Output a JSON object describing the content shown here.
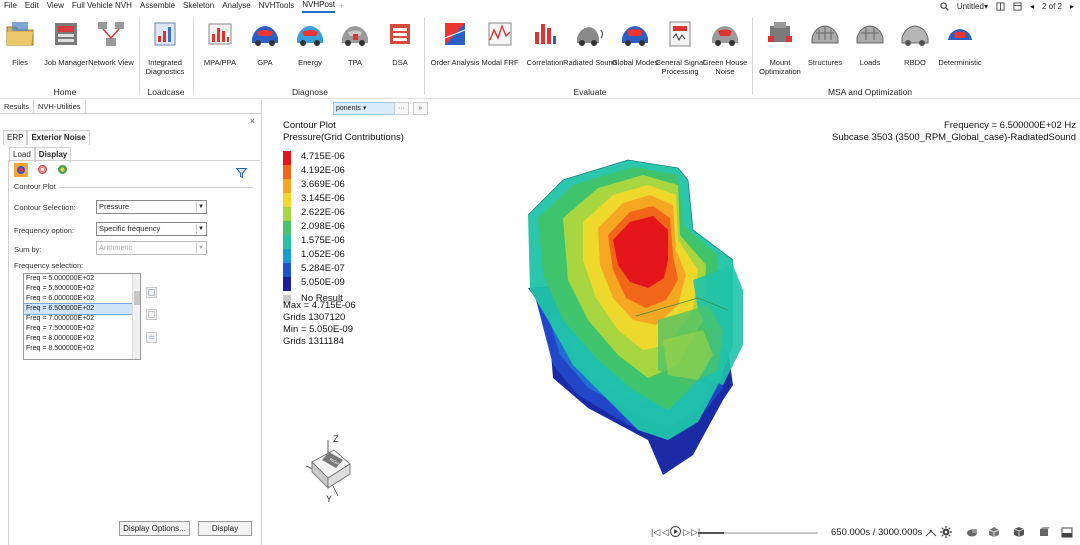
{
  "menubar": {
    "items": [
      "File",
      "Edit",
      "View",
      "Full Vehicle NVH",
      "Assemble",
      "Skeleton",
      "Analyse",
      "NVHTools",
      "NVHPost"
    ],
    "active_index": 8,
    "add_tab": "+"
  },
  "top_right": {
    "doc_title": "Untitled",
    "page_indicator": "2 of 2"
  },
  "ribbon": {
    "tools": [
      {
        "label": "Files",
        "icon": "folder-icon"
      },
      {
        "label": "Job Manager",
        "icon": "job-manager-icon"
      },
      {
        "label": "Network View",
        "icon": "network-view-icon"
      },
      {
        "label": "Integrated Diagnostics",
        "icon": "integrated-diagnostics-icon"
      },
      {
        "label": "MPA/PPA",
        "icon": "mpa-ppa-icon"
      },
      {
        "label": "GPA",
        "icon": "gpa-icon"
      },
      {
        "label": "Energy",
        "icon": "energy-icon"
      },
      {
        "label": "TPA",
        "icon": "tpa-icon"
      },
      {
        "label": "DSA",
        "icon": "dsa-icon"
      },
      {
        "label": "Order Analysis",
        "icon": "order-analysis-icon"
      },
      {
        "label": "Modal FRF",
        "icon": "modal-frf-icon"
      },
      {
        "label": "Correlation",
        "icon": "correlation-icon"
      },
      {
        "label": "Radiated Sound",
        "icon": "radiated-sound-icon"
      },
      {
        "label": "Global Modes",
        "icon": "global-modes-icon"
      },
      {
        "label": "General Signal Processing",
        "icon": "signal-processing-icon"
      },
      {
        "label": "Green House Noise",
        "icon": "green-house-noise-icon"
      },
      {
        "label": "Mount Optimization",
        "icon": "mount-optimization-icon"
      },
      {
        "label": "Structures",
        "icon": "structures-icon"
      },
      {
        "label": "Loads",
        "icon": "loads-icon"
      },
      {
        "label": "RBDO",
        "icon": "rbdo-icon"
      },
      {
        "label": "Deterministic",
        "icon": "deterministic-icon"
      }
    ],
    "groups": [
      "Home",
      "Loadcase",
      "Diagnose",
      "Evaluate",
      "MSA and Optimization"
    ]
  },
  "panel": {
    "tabs": [
      "Results",
      "NVH-Utilities"
    ],
    "close": "×",
    "subtabs": [
      "ERP",
      "Exterior Noise"
    ],
    "inner_tabs": [
      "Load",
      "Display"
    ],
    "section_title": "Contour Plot",
    "contour_selection_label": "Contour Selection:",
    "contour_selection_value": "Pressure",
    "frequency_option_label": "Frequency option:",
    "frequency_option_value": "Specific frequency",
    "sum_by_label": "Sum by:",
    "sum_by_value": "Arithmetic",
    "frequency_selection_label": "Frequency selection:",
    "frequencies": [
      "Freq = 5.000000E+02",
      "Freq = 5.500000E+02",
      "Freq = 6.000000E+02",
      "Freq = 6.500000E+02",
      "Freq = 7.000000E+02",
      "Freq = 7.500000E+02",
      "Freq = 8.000000E+02",
      "Freq = 8.500000E+02"
    ],
    "selected_frequency_index": 3,
    "display_options_button": "Display Options...",
    "display_button": "Display"
  },
  "viewport": {
    "search_placeholder": "ponents",
    "search_more": "···",
    "search_close": "»",
    "frequency_text": "Frequency = 6.500000E+02 Hz",
    "subcase_text": "Subcase 3503 (3500_RPM_Global_case)-RadiatedSound",
    "contour_title": "Contour Plot",
    "contour_subtitle": "Pressure(Grid Contributions)",
    "legend": [
      {
        "label": "4.715E-06",
        "color": "#e4151b"
      },
      {
        "label": "4.192E-06",
        "color": "#f2661a"
      },
      {
        "label": "3.669E-06",
        "color": "#f5a623"
      },
      {
        "label": "3.145E-06",
        "color": "#efd92a"
      },
      {
        "label": "2.622E-06",
        "color": "#a6d640"
      },
      {
        "label": "2.098E-06",
        "color": "#4cc06a"
      },
      {
        "label": "1.575E-06",
        "color": "#27c3a6"
      },
      {
        "label": "1.052E-06",
        "color": "#1a9ad6"
      },
      {
        "label": "5.284E-07",
        "color": "#1f4fd1"
      },
      {
        "label": "5.050E-09",
        "color": "#1b1f9e"
      }
    ],
    "no_result_label": "No Result",
    "no_result_color": "#c9c9c9",
    "stats": [
      "Max =  4.715E-06",
      "Grids 1307120",
      "Min =  5.050E-09",
      "Grids 1311184"
    ],
    "axis": {
      "z": "Z",
      "y": "Y",
      "cube_label": "RIGHT"
    },
    "animation": {
      "time_text": "650.000s / 3000.000s",
      "progress": 0.2167
    }
  }
}
